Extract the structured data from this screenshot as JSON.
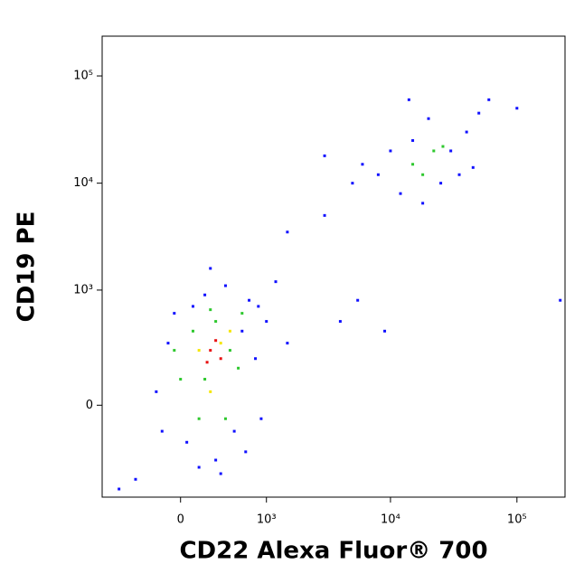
{
  "chart_data": {
    "type": "scatter",
    "x_label": "CD22 Alexa Fluor® 700",
    "y_label": "CD19 PE",
    "xscale": "biexponential",
    "yscale": "biexponential",
    "xlim": [
      -860,
      240000
    ],
    "ylim": [
      -600,
      235000
    ],
    "xticks": [
      0,
      {
        "value": 1000,
        "label": "10³"
      },
      {
        "value": 10000,
        "label": "10⁴"
      },
      {
        "value": 100000,
        "label": "10⁵"
      }
    ],
    "yticks": [
      0,
      {
        "value": 1000,
        "label": "10³"
      },
      {
        "value": 10000,
        "label": "10⁴"
      },
      {
        "value": 100000,
        "label": "10⁵"
      }
    ],
    "series": [
      {
        "color": "#1010ff",
        "x": [
          -200,
          -100,
          50,
          100,
          150,
          300,
          500,
          600,
          800,
          700,
          400,
          200,
          -50,
          900,
          1000,
          1500,
          -400,
          -600,
          250,
          1200,
          -150,
          350,
          650,
          850,
          8000,
          10000,
          12000,
          15000,
          20000,
          25000,
          30000,
          40000,
          6000,
          5000,
          18000,
          35000,
          50000,
          60000,
          14000,
          3000,
          45000,
          3000,
          1500,
          4000,
          5500,
          100000,
          220000,
          9000
        ],
        "values": [
          50,
          300,
          -150,
          700,
          -300,
          -250,
          -100,
          400,
          200,
          800,
          1100,
          900,
          600,
          -50,
          500,
          300,
          -400,
          -500,
          1600,
          1200,
          -100,
          -350,
          -200,
          700,
          12000,
          20000,
          8000,
          25000,
          40000,
          10000,
          20000,
          30000,
          15000,
          10000,
          6500,
          12000,
          45000,
          60000,
          60000,
          18000,
          14000,
          5000,
          3500,
          500,
          800,
          50000,
          800,
          400
        ]
      },
      {
        "color": "#2ec82e",
        "x": [
          0,
          100,
          200,
          300,
          450,
          550,
          250,
          -50,
          600,
          150,
          400,
          15000,
          22000,
          18000,
          26000
        ],
        "values": [
          100,
          400,
          100,
          500,
          250,
          150,
          650,
          250,
          600,
          -50,
          -50,
          15000,
          20000,
          12000,
          22000
        ]
      },
      {
        "color": "#f5e600",
        "x": [
          150,
          350,
          250,
          450
        ],
        "values": [
          250,
          300,
          50,
          400
        ]
      },
      {
        "color": "#e81010",
        "x": [
          250,
          350,
          300,
          220
        ],
        "values": [
          250,
          200,
          320,
          180
        ]
      }
    ]
  }
}
